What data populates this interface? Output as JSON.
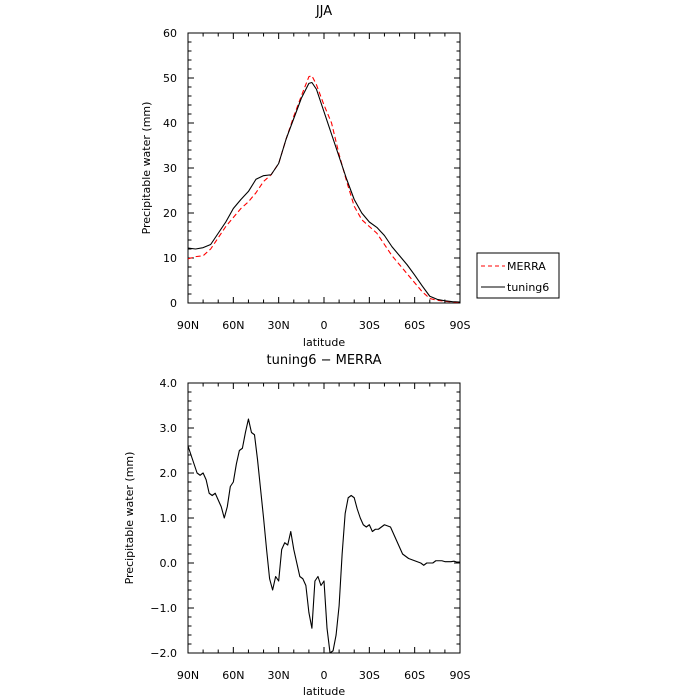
{
  "chart_data": [
    {
      "type": "line",
      "title": "JJA",
      "xlabel": "latitude",
      "ylabel": "Precipitable water (mm)",
      "xlim": [
        90,
        -90
      ],
      "ylim": [
        0,
        60
      ],
      "xticks": [
        90,
        60,
        30,
        0,
        -30,
        -60,
        -90
      ],
      "xtick_labels": [
        "90N",
        "60N",
        "30N",
        "0",
        "30S",
        "60S",
        "90S"
      ],
      "yticks": [
        0,
        10,
        20,
        30,
        40,
        50,
        60
      ],
      "ytick_labels": [
        "0",
        "10",
        "20",
        "30",
        "40",
        "50",
        "60"
      ],
      "grid": false,
      "legend": "right",
      "series": [
        {
          "name": "MERRA",
          "color": "#ff0000",
          "dash": "dashed",
          "x": [
            90,
            85,
            80,
            75,
            70,
            65,
            60,
            55,
            50,
            45,
            40,
            35,
            30,
            25,
            20,
            15,
            10,
            8,
            5,
            0,
            -5,
            -10,
            -15,
            -20,
            -25,
            -30,
            -35,
            -40,
            -45,
            -50,
            -55,
            -60,
            -65,
            -70,
            -75,
            -80,
            -85,
            -90
          ],
          "values": [
            9.8,
            10.3,
            10.5,
            12,
            14.5,
            17,
            19,
            21,
            22.5,
            24.5,
            27,
            28.5,
            31,
            36.5,
            41.5,
            46,
            50.3,
            50.5,
            48.5,
            44,
            40,
            33,
            27,
            21.5,
            18.5,
            17,
            15.5,
            13,
            10.5,
            8.5,
            6.5,
            4.5,
            2.5,
            1,
            0.6,
            0.4,
            0.2,
            0.1
          ]
        },
        {
          "name": "tuning6",
          "color": "#000000",
          "dash": "solid",
          "x": [
            90,
            85,
            80,
            75,
            70,
            65,
            60,
            55,
            50,
            45,
            40,
            35,
            30,
            25,
            20,
            15,
            10,
            8,
            5,
            0,
            -5,
            -10,
            -15,
            -20,
            -25,
            -30,
            -35,
            -40,
            -45,
            -50,
            -55,
            -60,
            -65,
            -70,
            -75,
            -80,
            -85,
            -90
          ],
          "values": [
            12.2,
            12,
            12.3,
            13,
            15.5,
            18,
            21,
            23,
            24.8,
            27.5,
            28.3,
            28.5,
            31,
            36.5,
            41,
            45.5,
            48.8,
            49,
            47.5,
            42.5,
            37.5,
            32.5,
            27.5,
            23,
            20,
            18,
            16.8,
            15,
            12.5,
            10.5,
            8.5,
            6.2,
            3.8,
            1.5,
            0.8,
            0.5,
            0.3,
            0.2
          ]
        }
      ]
    },
    {
      "type": "line",
      "title": "tuning6 − MERRA",
      "xlabel": "latitude",
      "ylabel": "Precipitable water (mm)",
      "xlim": [
        90,
        -90
      ],
      "ylim": [
        -2,
        4
      ],
      "xticks": [
        90,
        60,
        30,
        0,
        -30,
        -60,
        -90
      ],
      "xtick_labels": [
        "90N",
        "60N",
        "30N",
        "0",
        "30S",
        "60S",
        "90S"
      ],
      "yticks": [
        -2,
        -1,
        0,
        1,
        2,
        3,
        4
      ],
      "ytick_labels": [
        "−2.0",
        "−1.0",
        "0.0",
        "1.0",
        "2.0",
        "3.0",
        "4.0"
      ],
      "grid": false,
      "series": [
        {
          "color": "#000000",
          "dash": "solid",
          "x": [
            90,
            87,
            84,
            82,
            80,
            78,
            76,
            74,
            72,
            70,
            68,
            66,
            64,
            62,
            60,
            58,
            56,
            54,
            52,
            50,
            48,
            46,
            44,
            42,
            40,
            38,
            36,
            34,
            32,
            30,
            28,
            26,
            24,
            22,
            20,
            18,
            16,
            14,
            12,
            10,
            8,
            6,
            4,
            2,
            0,
            -2,
            -4,
            -6,
            -8,
            -10,
            -12,
            -14,
            -16,
            -18,
            -20,
            -22,
            -24,
            -26,
            -28,
            -30,
            -32,
            -34,
            -36,
            -38,
            -40,
            -44,
            -48,
            -52,
            -56,
            -60,
            -64,
            -66,
            -68,
            -70,
            -72,
            -74,
            -76,
            -78,
            -80,
            -84,
            -86,
            -88,
            -90
          ],
          "values": [
            2.6,
            2.3,
            2.0,
            1.95,
            2.0,
            1.85,
            1.55,
            1.5,
            1.55,
            1.4,
            1.25,
            1.0,
            1.25,
            1.7,
            1.8,
            2.2,
            2.5,
            2.55,
            2.9,
            3.2,
            2.9,
            2.85,
            2.3,
            1.65,
            1.0,
            0.3,
            -0.35,
            -0.6,
            -0.3,
            -0.4,
            0.3,
            0.45,
            0.4,
            0.7,
            0.3,
            0.0,
            -0.3,
            -0.35,
            -0.5,
            -1.1,
            -1.45,
            -0.4,
            -0.3,
            -0.5,
            -0.4,
            -1.45,
            -2.0,
            -1.95,
            -1.6,
            -0.95,
            0.2,
            1.1,
            1.45,
            1.5,
            1.45,
            1.2,
            1.0,
            0.85,
            0.8,
            0.85,
            0.7,
            0.75,
            0.75,
            0.8,
            0.85,
            0.8,
            0.5,
            0.2,
            0.1,
            0.05,
            0.0,
            -0.05,
            0.0,
            0.0,
            0.0,
            0.05,
            0.05,
            0.05,
            0.03,
            0.03,
            0.04,
            0.02,
            0.02
          ]
        }
      ]
    }
  ]
}
